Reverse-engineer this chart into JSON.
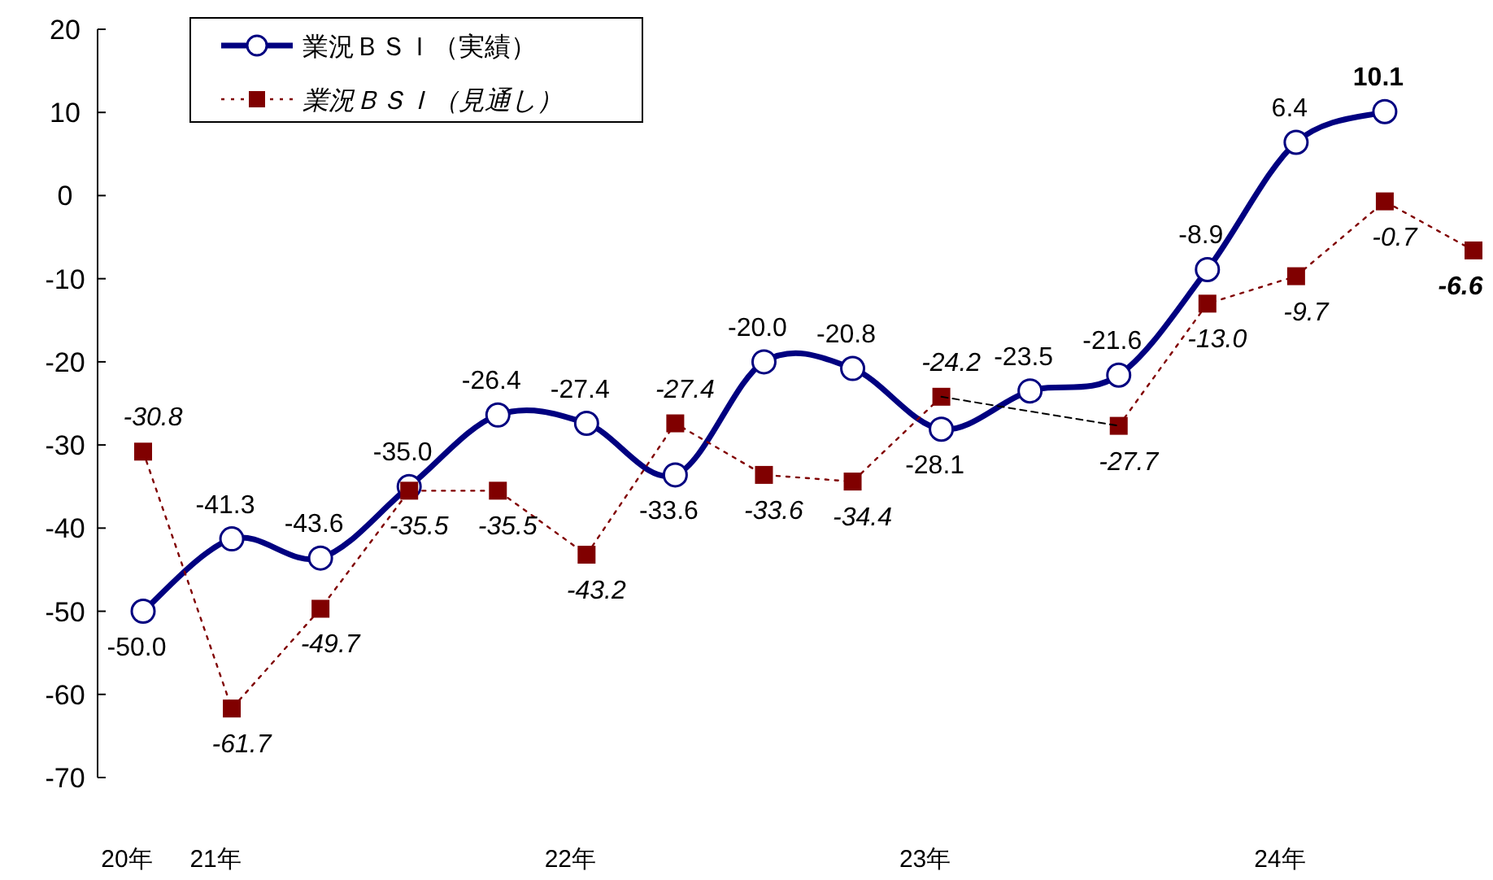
{
  "chart_data": {
    "type": "line",
    "categories": [
      "20年",
      "21年",
      null,
      null,
      null,
      "22年",
      null,
      null,
      null,
      "23年",
      null,
      null,
      null,
      "24年",
      null,
      null
    ],
    "ylim": [
      -70,
      20
    ],
    "yticks": [
      -70,
      -60,
      -50,
      -40,
      -30,
      -20,
      -10,
      0,
      10,
      20
    ],
    "grid": false,
    "legend": "top left",
    "series": [
      {
        "name": "業況ＢＳＩ（実績）",
        "color": "#000080",
        "marker": "circle",
        "line_style": "solid",
        "values": [
          -50.0,
          -41.3,
          -43.6,
          -35.0,
          -26.4,
          -27.4,
          -33.6,
          -20.0,
          -20.8,
          -28.1,
          -23.5,
          -21.6,
          -8.9,
          6.4,
          10.1,
          null
        ],
        "value_labels": [
          "-50.0",
          "-41.3",
          "-43.6",
          "-35.0",
          "-26.4",
          "-27.4",
          "-33.6",
          "-20.0",
          "-20.8",
          "-28.1",
          "-23.5",
          "-21.6",
          "-8.9",
          "6.4",
          "10.1",
          null
        ]
      },
      {
        "name": "業況ＢＳＩ（見通し）",
        "color": "#800000",
        "marker": "square",
        "line_style": "dotted",
        "values": [
          -30.8,
          -61.7,
          -49.7,
          -35.5,
          -35.5,
          -43.2,
          -27.4,
          -33.6,
          -34.4,
          -24.2,
          null,
          -27.7,
          -13.0,
          -9.7,
          -0.7,
          -6.6
        ],
        "value_labels": [
          "-30.8",
          "-61.7",
          "-49.7",
          "-35.5",
          "-35.5",
          "-43.2",
          "-27.4",
          "-33.6",
          "-34.4",
          "-24.2",
          null,
          "-27.7",
          "-13.0",
          "-9.7",
          "-0.7",
          "-6.6"
        ]
      },
      {
        "color": "#000000",
        "marker": "none",
        "line_style": "dashed",
        "values": [
          null,
          null,
          null,
          null,
          null,
          null,
          null,
          null,
          null,
          -24.2,
          null,
          -27.7,
          null,
          null,
          null,
          null
        ]
      }
    ]
  }
}
